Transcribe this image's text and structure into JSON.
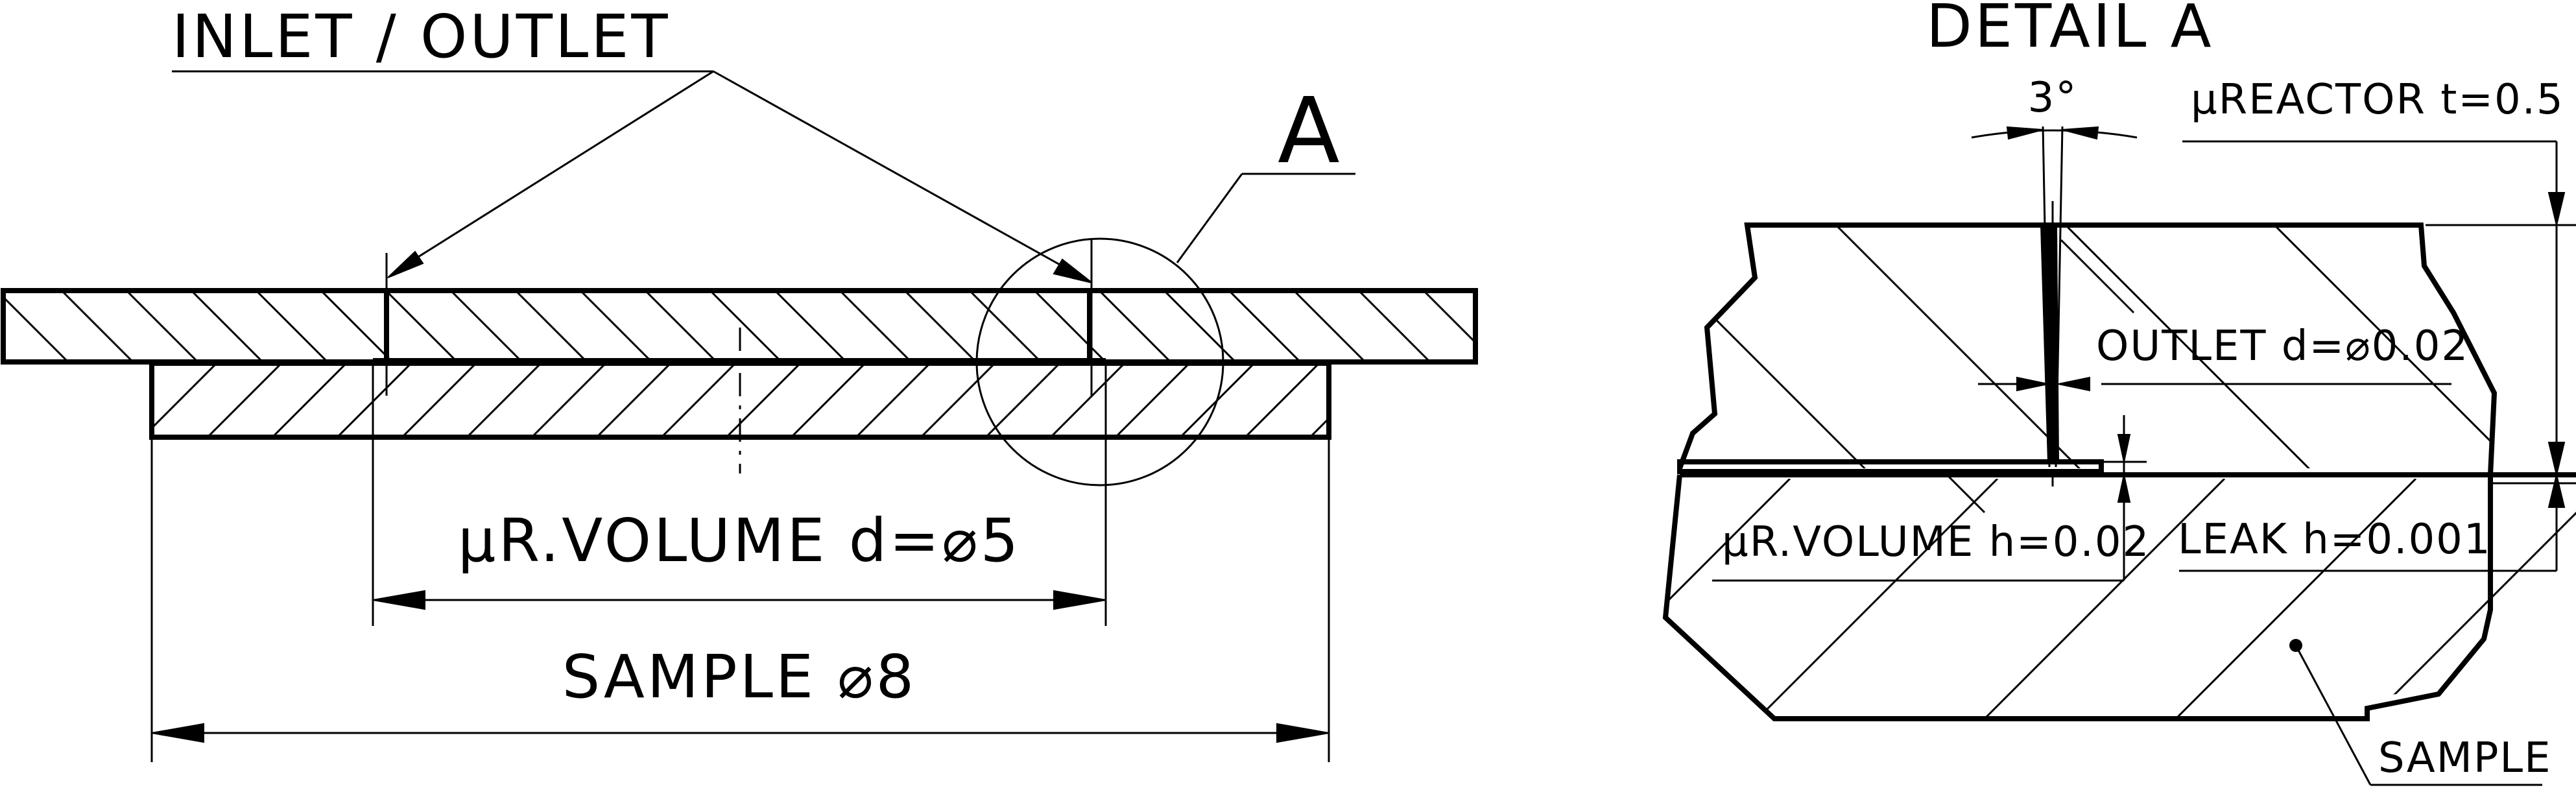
{
  "left_view": {
    "inlet_outlet": "INLET / OUTLET",
    "detail_marker": "A",
    "volume_dim": "μR.VOLUME d=⌀5",
    "sample_dim": "SAMPLE ⌀8"
  },
  "detail_view": {
    "title": "DETAIL A",
    "angle": "3°",
    "reactor_thickness": "μREACTOR t=0.5",
    "outlet_diameter": "OUTLET d=⌀0.02",
    "volume_height": "μR.VOLUME h=0.02",
    "leak_height": "LEAK h=0.001",
    "sample_label": "SAMPLE"
  }
}
